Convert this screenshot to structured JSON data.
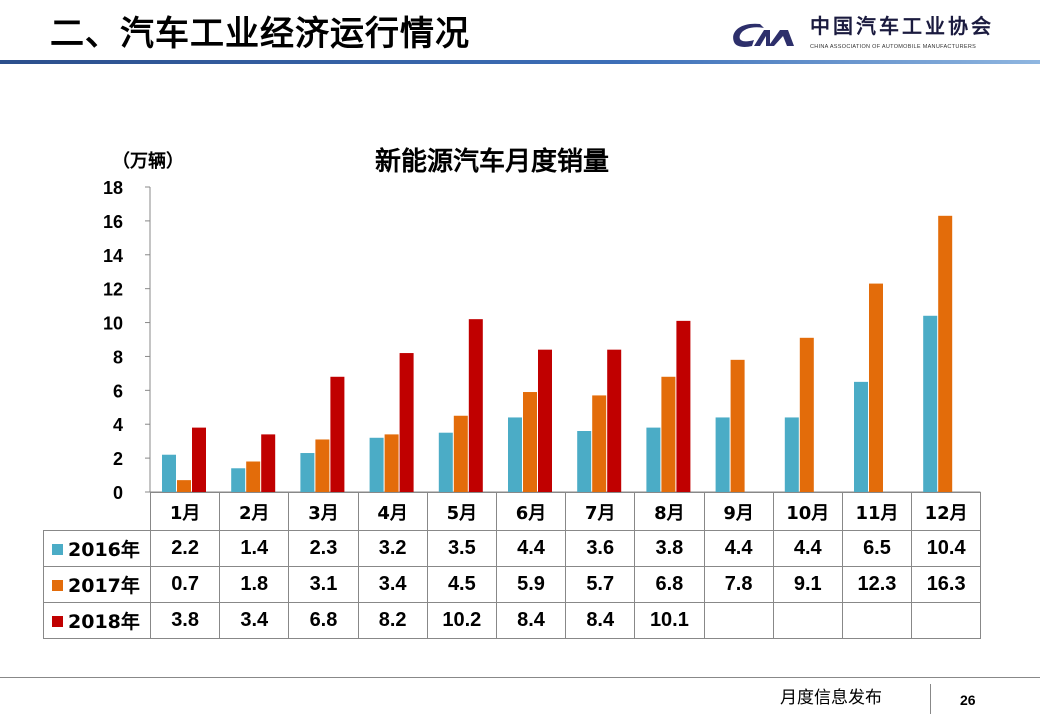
{
  "header": {
    "title": "二、汽车工业经济运行情况",
    "logo_cn": "中国汽车工业协会",
    "logo_en": "CHINA ASSOCIATION OF AUTOMOBILE MANUFACTURERS"
  },
  "footer": {
    "text": "月度信息发布",
    "page": "26"
  },
  "colors": {
    "s2016": "#4bacc6",
    "s2017": "#e36c0a",
    "s2018": "#c00000"
  },
  "chart_data": {
    "type": "bar",
    "title": "新能源汽车月度销量",
    "ylabel": "（万辆）",
    "ylim": [
      0,
      18
    ],
    "yticks": [
      "0",
      "2",
      "4",
      "6",
      "8",
      "10",
      "12",
      "14",
      "16",
      "18"
    ],
    "categories": [
      "1月",
      "2月",
      "3月",
      "4月",
      "5月",
      "6月",
      "7月",
      "8月",
      "9月",
      "10月",
      "11月",
      "12月"
    ],
    "series": [
      {
        "name": "2016年",
        "values": [
          2.2,
          1.4,
          2.3,
          3.2,
          3.5,
          4.4,
          3.6,
          3.8,
          4.4,
          4.4,
          6.5,
          10.4
        ]
      },
      {
        "name": "2017年",
        "values": [
          0.7,
          1.8,
          3.1,
          3.4,
          4.5,
          5.9,
          5.7,
          6.8,
          7.8,
          9.1,
          12.3,
          16.3
        ]
      },
      {
        "name": "2018年",
        "values": [
          3.8,
          3.4,
          6.8,
          8.2,
          10.2,
          8.4,
          8.4,
          10.1,
          null,
          null,
          null,
          null
        ]
      }
    ],
    "legend": "table-left"
  }
}
